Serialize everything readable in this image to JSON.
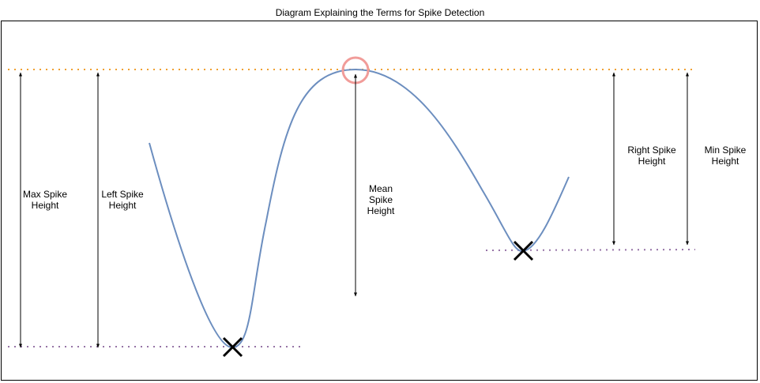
{
  "title": "Diagram Explaining the Terms for Spike Detection",
  "labels": {
    "max_spike_height": "Max Spike\nHeight",
    "left_spike_height": "Left Spike\nHeight",
    "mean_spike_height": "Mean\nSpike\nHeight",
    "right_spike_height": "Right Spike\nHeight",
    "min_spike_height": "Min Spike\nHeight"
  },
  "colors": {
    "curve": "#6c8ebf",
    "peak_line": "#f0a030",
    "trough_line": "#9673a6",
    "peak_marker": "#f19c99",
    "arrow": "#000000"
  }
}
